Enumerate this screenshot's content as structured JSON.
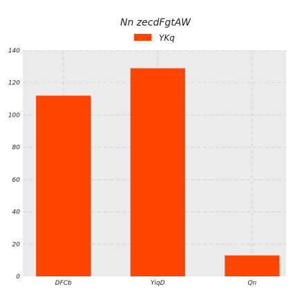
{
  "chart_data": {
    "type": "bar",
    "title": "Nn zecdFgtAW",
    "xlabel": "",
    "ylabel": "",
    "categories": [
      "DFCb",
      "YiqD",
      "Qn"
    ],
    "series": [
      {
        "name": "YKq",
        "values": [
          112,
          129,
          13
        ]
      }
    ],
    "ylim": [
      0,
      140
    ],
    "yticks": [
      0,
      20,
      40,
      60,
      80,
      100,
      120,
      140
    ],
    "grid": true,
    "legend_position": "top-center",
    "colors": {
      "bar": "#ff4500",
      "plot_background": "#ebebeb",
      "grid": "#cfcfcf"
    }
  }
}
